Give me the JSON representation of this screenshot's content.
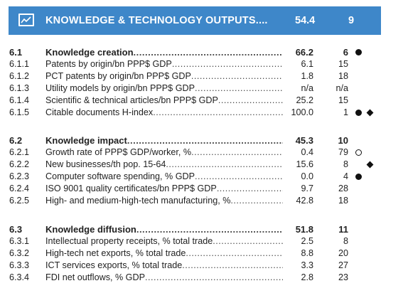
{
  "header": {
    "icon": "line-chart-icon",
    "title": "KNOWLEDGE & TECHNOLOGY OUTPUTS....",
    "score": "54.4",
    "rank": "9",
    "background": "#3e87c9"
  },
  "rows": [
    {
      "code": "6.1",
      "label": "Knowledge creation",
      "score": "66.2",
      "rank": "6",
      "section": true,
      "markers": [
        "dot"
      ]
    },
    {
      "code": "6.1.1",
      "label": "Patents by origin/bn PPP$ GDP",
      "score": "6.1",
      "rank": "15",
      "markers": []
    },
    {
      "code": "6.1.2",
      "label": "PCT patents by origin/bn PPP$ GDP",
      "score": "1.8",
      "rank": "18",
      "markers": []
    },
    {
      "code": "6.1.3",
      "label": "Utility models by origin/bn PPP$ GDP",
      "score": "n/a",
      "rank": "n/a",
      "markers": []
    },
    {
      "code": "6.1.4",
      "label": "Scientific & technical articles/bn PPP$ GDP",
      "score": "25.2",
      "rank": "15",
      "markers": []
    },
    {
      "code": "6.1.5",
      "label": "Citable documents H-index",
      "score": "100.0",
      "rank": "1",
      "markers": [
        "dot",
        "diamond"
      ]
    },
    {
      "code": "6.2",
      "label": "Knowledge impact",
      "score": "45.3",
      "rank": "10",
      "section": true,
      "markers": []
    },
    {
      "code": "6.2.1",
      "label": "Growth rate of PPP$ GDP/worker, %",
      "score": "0.4",
      "rank": "79",
      "markers": [
        "circle"
      ]
    },
    {
      "code": "6.2.2",
      "label": "New businesses/th pop. 15-64",
      "score": "15.6",
      "rank": "8",
      "markers": [
        "",
        "diamond"
      ]
    },
    {
      "code": "6.2.3",
      "label": "Computer software spending, % GDP",
      "score": "0.0",
      "rank": "4",
      "markers": [
        "dot"
      ]
    },
    {
      "code": "6.2.4",
      "label": "ISO 9001 quality certificates/bn PPP$ GDP",
      "score": "9.7",
      "rank": "28",
      "markers": []
    },
    {
      "code": "6.2.5",
      "label": "High- and medium-high-tech manufacturing, %",
      "score": "42.8",
      "rank": "18",
      "markers": []
    },
    {
      "code": "6.3",
      "label": "Knowledge diffusion",
      "score": "51.8",
      "rank": "11",
      "section": true,
      "markers": []
    },
    {
      "code": "6.3.1",
      "label": "Intellectual property receipts, % total trade",
      "score": "2.5",
      "rank": "8",
      "markers": []
    },
    {
      "code": "6.3.2",
      "label": "High-tech net exports, % total trade",
      "score": "8.8",
      "rank": "20",
      "markers": []
    },
    {
      "code": "6.3.3",
      "label": "ICT services exports, % total trade",
      "score": "3.3",
      "rank": "27",
      "markers": []
    },
    {
      "code": "6.3.4",
      "label": "FDI net outflows, % GDP",
      "score": "2.8",
      "rank": "23",
      "markers": []
    }
  ]
}
